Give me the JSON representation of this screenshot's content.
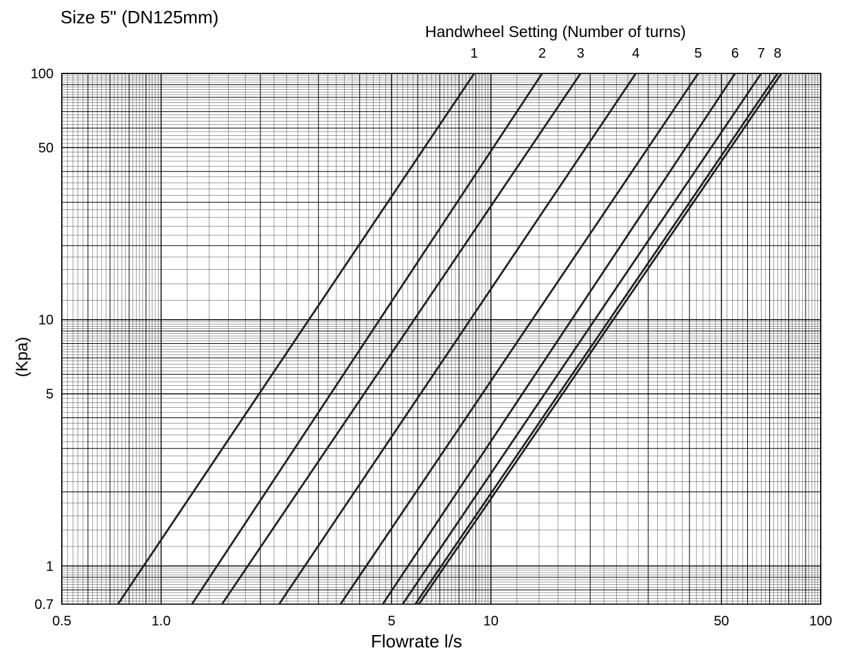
{
  "chart_data": {
    "type": "line",
    "title": "Size 5\" (DN125mm)",
    "subtitle": "Handwheel Setting (Number of turns)",
    "xlabel": "Flowrate l/s",
    "ylabel": "(Kpa)",
    "xscale": "log",
    "yscale": "log",
    "xlim": [
      0.5,
      100
    ],
    "ylim": [
      0.7,
      100
    ],
    "grid": true,
    "x_ticks": [
      {
        "value": 0.5,
        "label": "0.5"
      },
      {
        "value": 1,
        "label": "1.0"
      },
      {
        "value": 5,
        "label": "5"
      },
      {
        "value": 10,
        "label": "10"
      },
      {
        "value": 50,
        "label": "50"
      },
      {
        "value": 100,
        "label": "100"
      }
    ],
    "y_ticks": [
      {
        "value": 100,
        "label": "100"
      },
      {
        "value": 50,
        "label": "50"
      },
      {
        "value": 10,
        "label": "10"
      },
      {
        "value": 5,
        "label": "5"
      },
      {
        "value": 1,
        "label": "1"
      },
      {
        "value": 0.7,
        "label": "0.7"
      }
    ],
    "series": [
      {
        "name": "1",
        "x": [
          0.74,
          8.9
        ],
        "y": [
          0.7,
          100
        ]
      },
      {
        "name": "2",
        "x": [
          1.24,
          14.3
        ],
        "y": [
          0.7,
          100
        ]
      },
      {
        "name": "3",
        "x": [
          1.53,
          18.7
        ],
        "y": [
          0.7,
          100
        ]
      },
      {
        "name": "4",
        "x": [
          2.28,
          27.5
        ],
        "y": [
          0.7,
          100
        ]
      },
      {
        "name": "5",
        "x": [
          3.5,
          42.5
        ],
        "y": [
          0.7,
          100
        ]
      },
      {
        "name": "6",
        "x": [
          4.7,
          55
        ],
        "y": [
          0.7,
          100
        ]
      },
      {
        "name": "7",
        "x": [
          5.4,
          66
        ],
        "y": [
          0.7,
          100
        ]
      },
      {
        "name": "8",
        "x": [
          5.9,
          74
        ],
        "y": [
          0.7,
          100
        ]
      },
      {
        "name": "",
        "x": [
          6.05,
          76
        ],
        "y": [
          0.7,
          100
        ]
      }
    ],
    "line_color": "#222222",
    "grid_color": "#000000"
  }
}
